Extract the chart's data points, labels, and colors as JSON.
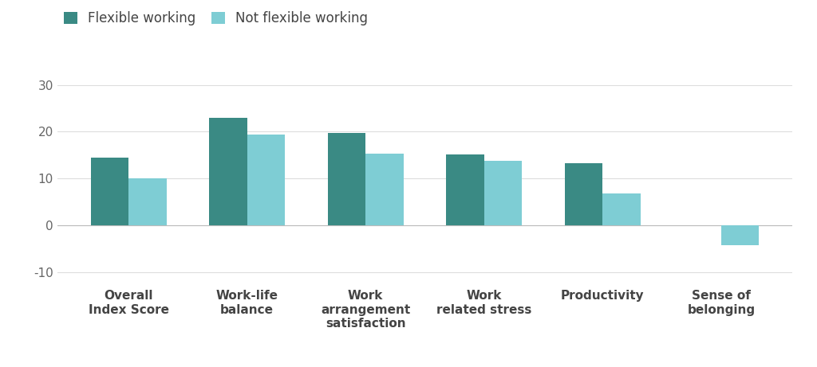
{
  "categories": [
    "Overall\nIndex Score",
    "Work-life\nbalance",
    "Work\narrangement\nsatisfaction",
    "Work\nrelated stress",
    "Productivity",
    "Sense of\nbelonging"
  ],
  "flexible_working": [
    14.5,
    23.0,
    19.8,
    15.2,
    13.3,
    0.0
  ],
  "not_flexible_working": [
    10.0,
    19.3,
    15.3,
    13.7,
    6.8,
    -4.2
  ],
  "flexible_color": "#3a8a84",
  "not_flexible_color": "#7ecdd4",
  "background_color": "#ffffff",
  "legend_labels": [
    "Flexible working",
    "Not flexible working"
  ],
  "yticks": [
    -10,
    0,
    10,
    20,
    30
  ],
  "ylim": [
    -13,
    34
  ],
  "bar_width": 0.32,
  "label_fontsize": 12,
  "tick_fontsize": 11,
  "axis_label_color": "#444444",
  "tick_label_color": "#666666",
  "grid_color": "#dddddd"
}
